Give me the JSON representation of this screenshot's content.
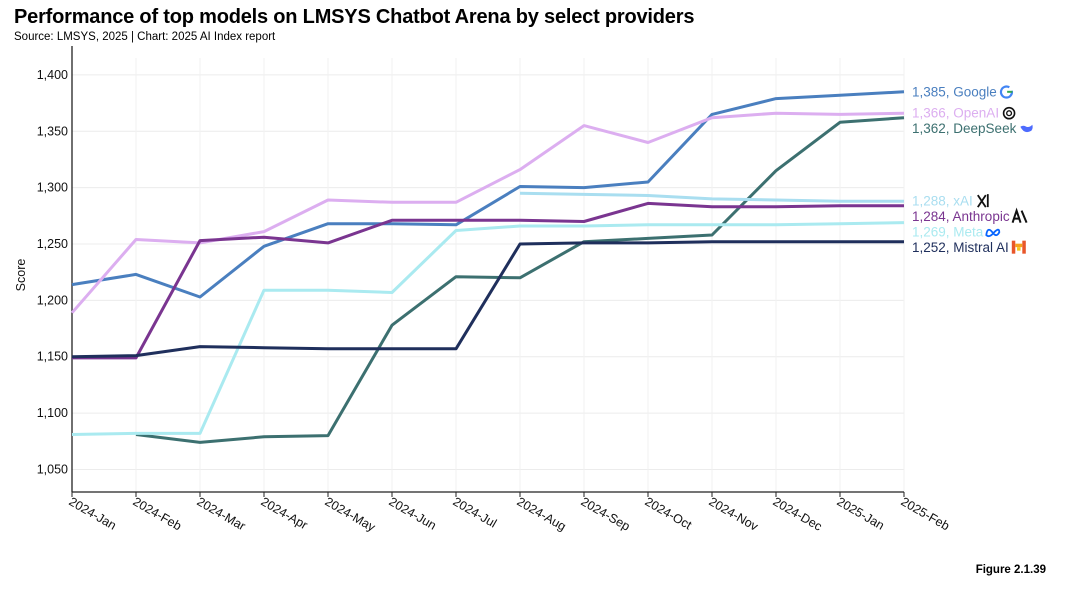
{
  "header": {
    "title": "Performance of top models on LMSYS Chatbot Arena by select providers",
    "subtitle": "Source: LMSYS, 2025 | Chart: 2025 AI Index report"
  },
  "footer": {
    "figure_label": "Figure 2.1.39"
  },
  "chart_data": {
    "type": "line",
    "ylabel": "Score",
    "ylim": [
      1030,
      1415
    ],
    "yticks": [
      1050,
      1100,
      1150,
      1200,
      1250,
      1300,
      1350,
      1400
    ],
    "ytick_labels": [
      "1,050",
      "1,100",
      "1,150",
      "1,200",
      "1,250",
      "1,300",
      "1,350",
      "1,400"
    ],
    "grid": true,
    "categories": [
      "2024-Jan",
      "2024-Feb",
      "2024-Mar",
      "2024-Apr",
      "2024-May",
      "2024-Jun",
      "2024-Jul",
      "2024-Aug",
      "2024-Sep",
      "2024-Oct",
      "2024-Nov",
      "2024-Dec",
      "2025-Jan",
      "2025-Feb"
    ],
    "series": [
      {
        "name": "Google",
        "label": "1,385, Google",
        "color": "#4a7fbf",
        "icon": "google-icon",
        "values": [
          1214,
          1223,
          1203,
          1248,
          1268,
          1268,
          1267,
          1301,
          1300,
          1305,
          1365,
          1379,
          1382,
          1385
        ]
      },
      {
        "name": "OpenAI",
        "label": "1,366, OpenAI",
        "color": "#dcaef0",
        "icon": "openai-icon",
        "values": [
          1189,
          1254,
          1251,
          1261,
          1289,
          1287,
          1287,
          1316,
          1355,
          1340,
          1362,
          1366,
          1365,
          1366
        ]
      },
      {
        "name": "DeepSeek",
        "label": "1,362, DeepSeek",
        "color": "#3c7070",
        "icon": "deepseek-icon",
        "values": [
          null,
          1081,
          1074,
          1079,
          1080,
          1178,
          1221,
          1220,
          1252,
          1255,
          1258,
          1315,
          1358,
          1362
        ]
      },
      {
        "name": "xAI",
        "label": "1,288, xAI",
        "color": "#a9def0",
        "icon": "xai-icon",
        "values": [
          null,
          null,
          null,
          null,
          null,
          null,
          null,
          1295,
          1294,
          1293,
          1290,
          1289,
          1288,
          1288
        ]
      },
      {
        "name": "Anthropic",
        "label": "1,284, Anthropic",
        "color": "#7a3590",
        "icon": "anthropic-icon",
        "values": [
          1149,
          1149,
          1253,
          1256,
          1251,
          1271,
          1271,
          1271,
          1270,
          1286,
          1283,
          1283,
          1284,
          1284
        ]
      },
      {
        "name": "Meta",
        "label": "1,269, Meta",
        "color": "#aaeaf0",
        "icon": "meta-icon",
        "values": [
          1081,
          1082,
          1082,
          1209,
          1209,
          1207,
          1262,
          1266,
          1266,
          1267,
          1267,
          1267,
          1268,
          1269
        ]
      },
      {
        "name": "Mistral AI",
        "label": "1,252, Mistral AI",
        "color": "#1f2f5c",
        "icon": "mistral-icon",
        "values": [
          1150,
          1151,
          1159,
          1158,
          1157,
          1157,
          1157,
          1250,
          1251,
          1251,
          1252,
          1252,
          1252,
          1252
        ]
      }
    ]
  }
}
